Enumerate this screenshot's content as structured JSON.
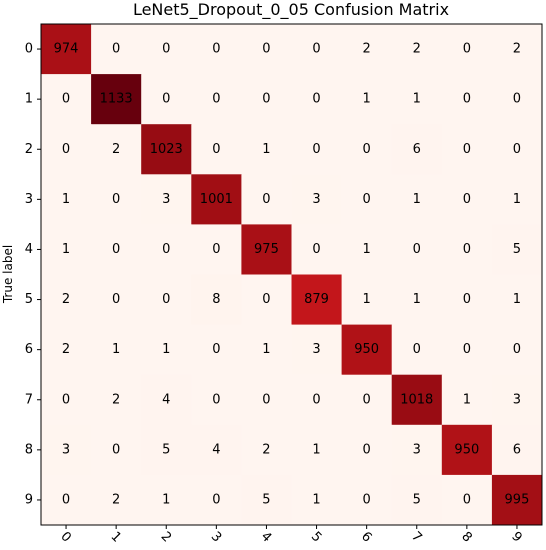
{
  "chart_data": {
    "type": "heatmap",
    "title": "LeNet5_Dropout_0_05 Confusion Matrix",
    "ylabel": "True label",
    "xlabel": "",
    "x_tick_labels": [
      "0",
      "1",
      "2",
      "3",
      "4",
      "5",
      "6",
      "7",
      "8",
      "9"
    ],
    "y_tick_labels": [
      "0",
      "1",
      "2",
      "3",
      "4",
      "5",
      "6",
      "7",
      "8",
      "9"
    ],
    "matrix": [
      [
        974,
        0,
        0,
        0,
        0,
        0,
        2,
        2,
        0,
        2
      ],
      [
        0,
        1133,
        0,
        0,
        0,
        0,
        1,
        1,
        0,
        0
      ],
      [
        0,
        2,
        1023,
        0,
        1,
        0,
        0,
        6,
        0,
        0
      ],
      [
        1,
        0,
        3,
        1001,
        0,
        3,
        0,
        1,
        0,
        1
      ],
      [
        1,
        0,
        0,
        0,
        975,
        0,
        1,
        0,
        0,
        5
      ],
      [
        2,
        0,
        0,
        8,
        0,
        879,
        1,
        1,
        0,
        1
      ],
      [
        2,
        1,
        1,
        0,
        1,
        3,
        950,
        0,
        0,
        0
      ],
      [
        0,
        2,
        4,
        0,
        0,
        0,
        0,
        1018,
        1,
        3
      ],
      [
        3,
        0,
        5,
        4,
        2,
        1,
        0,
        3,
        950,
        6
      ],
      [
        0,
        2,
        1,
        0,
        5,
        1,
        0,
        5,
        0,
        995
      ]
    ],
    "colormap": "Reds",
    "colorbar": false
  }
}
